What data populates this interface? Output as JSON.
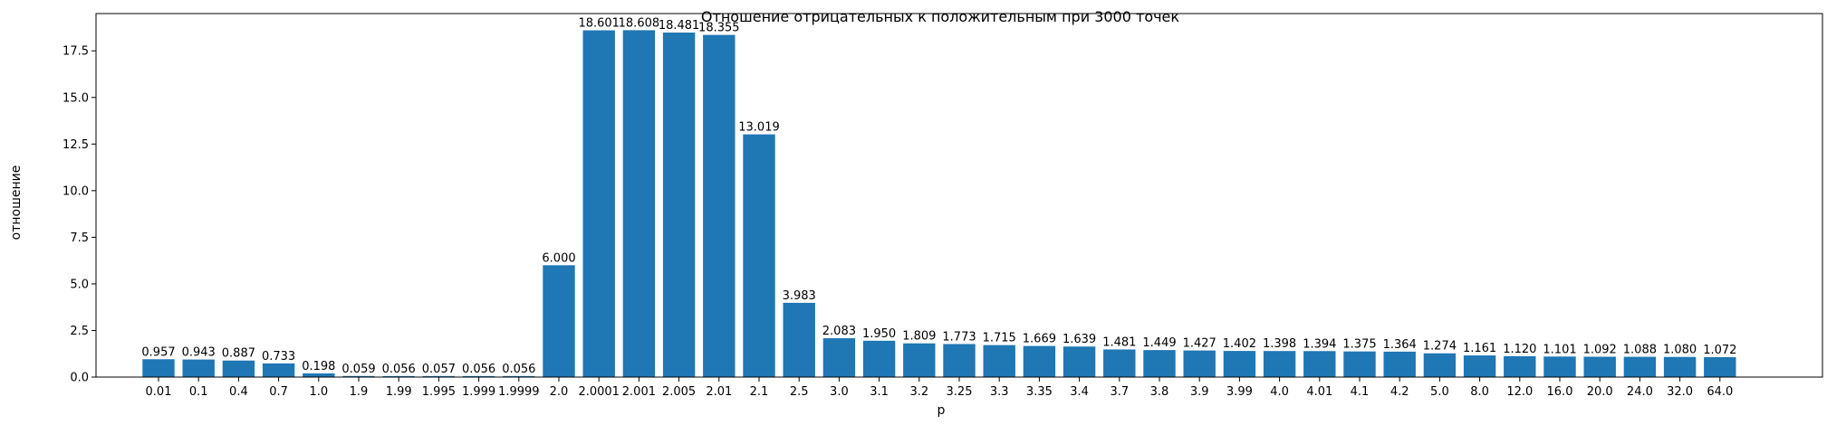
{
  "chart_data": {
    "type": "bar",
    "title": "Отношение отрицательных к положительным при 3000 точек",
    "xlabel": "p",
    "ylabel": "отношение",
    "ylim": [
      0,
      19.5
    ],
    "yticks": [
      "0.0",
      "2.5",
      "5.0",
      "7.5",
      "10.0",
      "12.5",
      "15.0",
      "17.5"
    ],
    "grid": false,
    "bar_color": "#1f77b4",
    "categories": [
      "0.01",
      "0.1",
      "0.4",
      "0.7",
      "1.0",
      "1.9",
      "1.99",
      "1.995",
      "1.999",
      "1.9999",
      "2.0",
      "2.0001",
      "2.001",
      "2.005",
      "2.01",
      "2.1",
      "2.5",
      "3.0",
      "3.1",
      "3.2",
      "3.25",
      "3.3",
      "3.35",
      "3.4",
      "3.7",
      "3.8",
      "3.9",
      "3.99",
      "4.0",
      "4.01",
      "4.1",
      "4.2",
      "5.0",
      "8.0",
      "12.0",
      "16.0",
      "20.0",
      "24.0",
      "32.0",
      "64.0"
    ],
    "values": [
      0.957,
      0.943,
      0.887,
      0.733,
      0.198,
      0.059,
      0.056,
      0.057,
      0.056,
      0.056,
      6.0,
      18.601,
      18.608,
      18.481,
      18.355,
      13.019,
      3.983,
      2.083,
      1.95,
      1.809,
      1.773,
      1.715,
      1.669,
      1.639,
      1.481,
      1.449,
      1.427,
      1.402,
      1.398,
      1.394,
      1.375,
      1.364,
      1.274,
      1.161,
      1.12,
      1.101,
      1.092,
      1.088,
      1.08,
      1.072
    ],
    "value_labels": [
      "0.957",
      "0.943",
      "0.887",
      "0.733",
      "0.198",
      "0.059",
      "0.056",
      "0.057",
      "0.056",
      "0.056",
      "6.000",
      "18.601",
      "18.608",
      "18.481",
      "18.355",
      "13.019",
      "3.983",
      "2.083",
      "1.950",
      "1.809",
      "1.773",
      "1.715",
      "1.669",
      "1.639",
      "1.481",
      "1.449",
      "1.427",
      "1.402",
      "1.398",
      "1.394",
      "1.375",
      "1.364",
      "1.274",
      "1.161",
      "1.120",
      "1.101",
      "1.092",
      "1.088",
      "1.080",
      "1.072"
    ]
  }
}
